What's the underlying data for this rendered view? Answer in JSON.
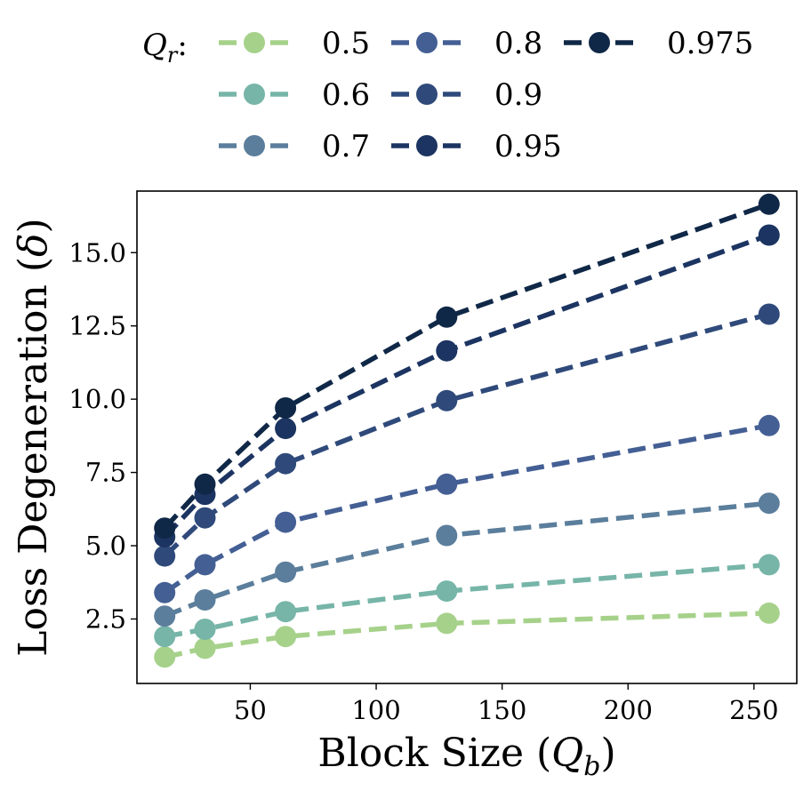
{
  "chart_data": {
    "type": "line",
    "xlabel": "Block Size (",
    "xlabel_sym": "Q",
    "xlabel_sub": "b",
    "xlabel_close": ")",
    "ylabel": "Loss Degeneration (",
    "ylabel_sym": "δ",
    "ylabel_close": ")",
    "xlim": [
      5,
      267
    ],
    "ylim": [
      0.3,
      17.1
    ],
    "xticks": [
      50,
      100,
      150,
      200,
      250
    ],
    "yticks": [
      2.5,
      5.0,
      7.5,
      10.0,
      12.5,
      15.0
    ],
    "ytick_labels": [
      "2.5",
      "5.0",
      "7.5",
      "10.0",
      "12.5",
      "15.0"
    ],
    "x": [
      16,
      32,
      64,
      128,
      256
    ],
    "legend": {
      "title_sym": "Q",
      "title_sub": "r",
      "title_colon": ":",
      "placement": "top"
    },
    "series": [
      {
        "name": "0.5",
        "color": "#a6d18a",
        "values": [
          1.2,
          1.5,
          1.9,
          2.35,
          2.7
        ]
      },
      {
        "name": "0.6",
        "color": "#76b5a8",
        "values": [
          1.9,
          2.15,
          2.75,
          3.45,
          4.35
        ]
      },
      {
        "name": "0.7",
        "color": "#5b7e9c",
        "values": [
          2.6,
          3.15,
          4.1,
          5.35,
          6.45
        ]
      },
      {
        "name": "0.8",
        "color": "#445f94",
        "values": [
          3.4,
          4.35,
          5.8,
          7.1,
          9.1
        ]
      },
      {
        "name": "0.9",
        "color": "#2f4a7a",
        "values": [
          4.65,
          5.95,
          7.8,
          9.95,
          12.9
        ]
      },
      {
        "name": "0.95",
        "color": "#1c3461",
        "values": [
          5.3,
          6.75,
          9.0,
          11.65,
          15.6
        ]
      },
      {
        "name": "0.975",
        "color": "#102847",
        "values": [
          5.6,
          7.1,
          9.7,
          12.8,
          16.65
        ]
      }
    ]
  }
}
